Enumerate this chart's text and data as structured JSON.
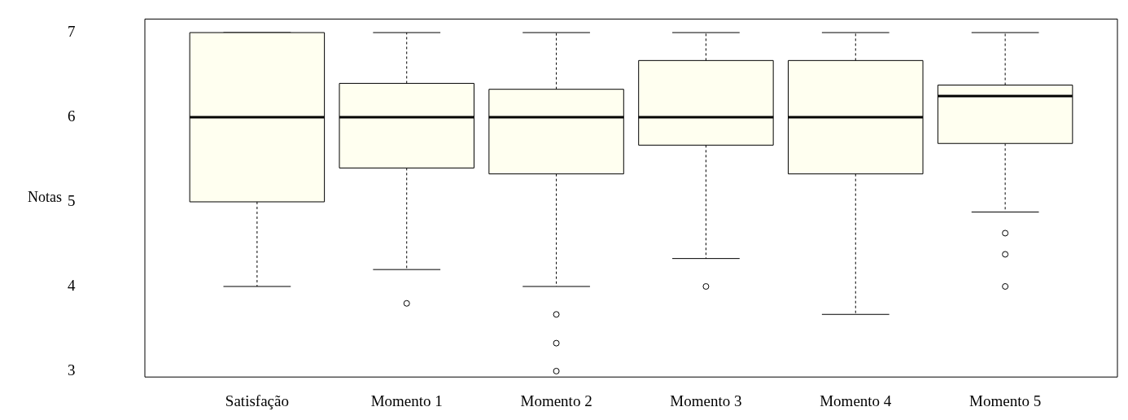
{
  "chart_data": {
    "type": "box",
    "ylabel": "Notas",
    "categories": [
      "Satisfação",
      "Momento 1",
      "Momento 2",
      "Momento 3",
      "Momento 4",
      "Momento 5"
    ],
    "color": "#fffff0",
    "ylim": [
      2.93,
      7.16
    ],
    "yticks": [
      3,
      4,
      5,
      6,
      7
    ],
    "grid": false,
    "legend": false,
    "marker": "circle",
    "boxes": [
      {
        "low": 4,
        "q1": 5,
        "median": 6,
        "q3": 7,
        "high": 7
      },
      {
        "low": 4.2,
        "q1": 5.4,
        "median": 6,
        "q3": 6.4,
        "high": 7,
        "outliers": [
          3.8
        ]
      },
      {
        "low": 4,
        "q1": 5.33,
        "median": 6,
        "q3": 6.33,
        "high": 7,
        "outliers": [
          3.67,
          3.33,
          3
        ]
      },
      {
        "low": 4.33,
        "q1": 5.67,
        "median": 6,
        "q3": 6.67,
        "high": 7,
        "outliers": [
          4
        ]
      },
      {
        "low": 3.67,
        "q1": 5.33,
        "median": 6,
        "q3": 6.67,
        "high": 7
      },
      {
        "low": 4.88,
        "q1": 5.69,
        "median": 6.25,
        "q3": 6.38,
        "high": 7,
        "outliers": [
          4.63,
          4.38,
          4
        ]
      }
    ]
  }
}
